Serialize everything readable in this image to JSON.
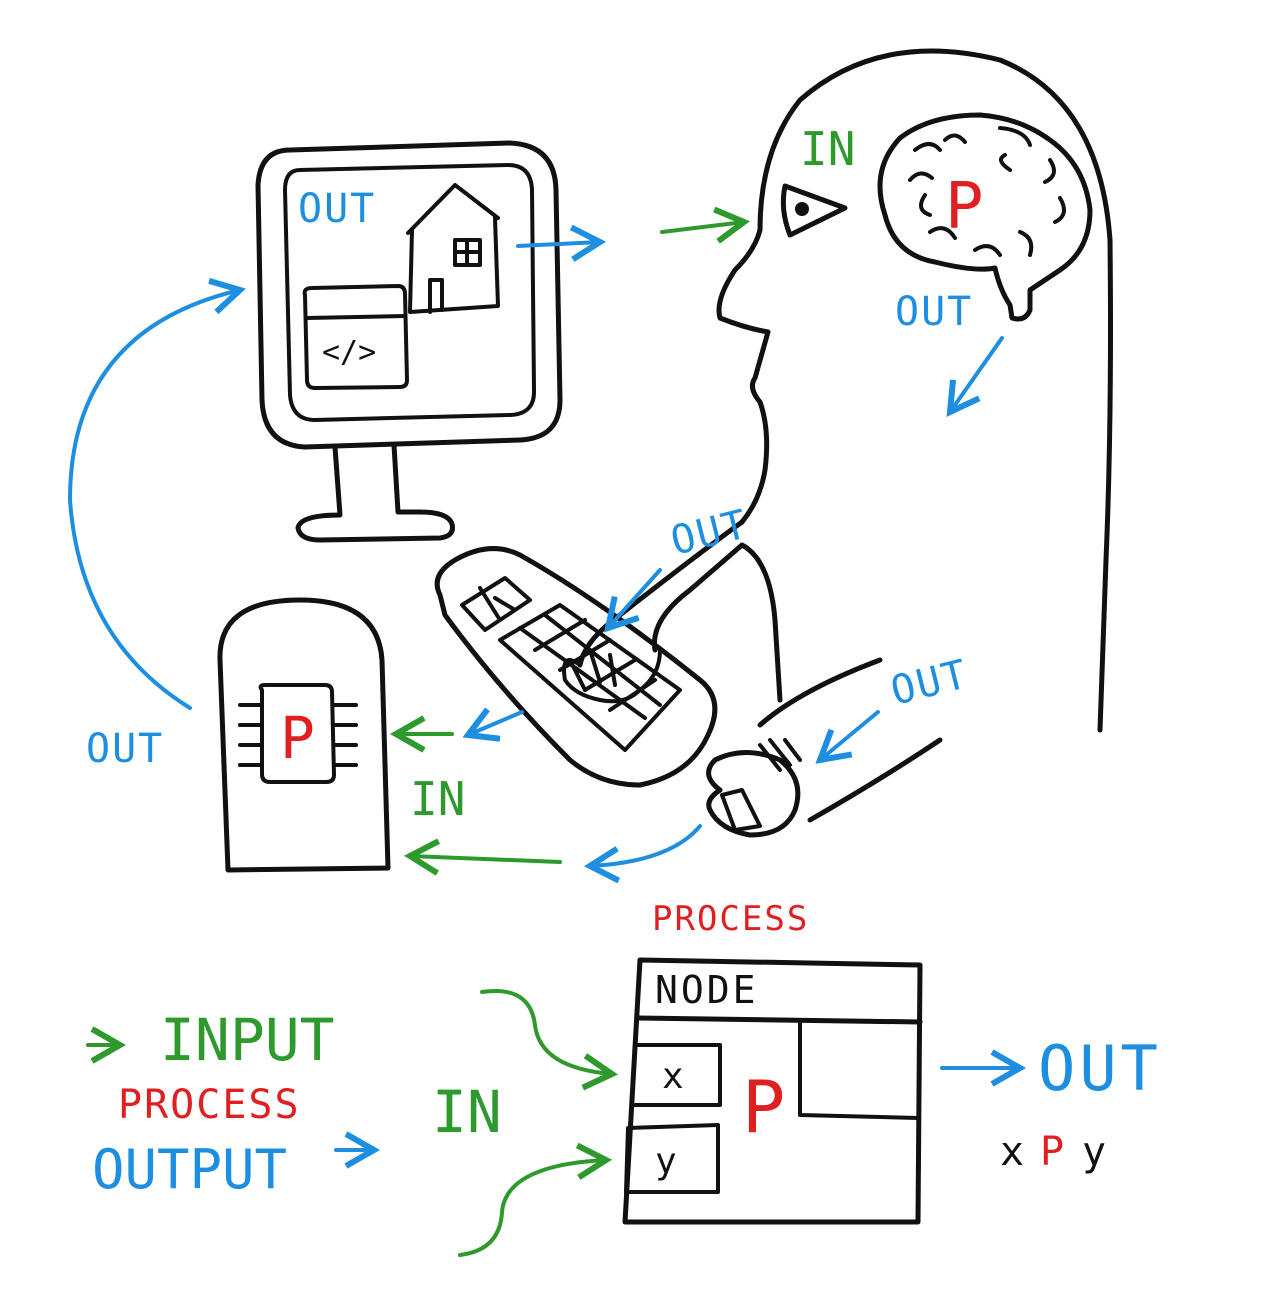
{
  "colors": {
    "in": "#2e9a2e",
    "out": "#1e8fe0",
    "process": "#e02020",
    "ink": "#111111"
  },
  "labels": {
    "in": "IN",
    "out": "OUT",
    "p": "P",
    "code": "</>"
  },
  "legend": {
    "input": "INPUT",
    "process": "PROCESS",
    "output": "OUTPUT"
  },
  "node": {
    "caption": "PROCESS",
    "title": "NODE",
    "input_x": "x",
    "input_y": "y",
    "process_symbol": "P",
    "in_label": "IN",
    "out_label": "OUT"
  },
  "formula": [
    "x",
    "P",
    "y"
  ],
  "icons": [
    "monitor-icon",
    "house-icon",
    "code-window-icon",
    "head-icon",
    "eye-icon",
    "brain-icon",
    "keyboard-icon",
    "hand-icon",
    "mouse-icon",
    "computer-case-icon",
    "chip-icon"
  ]
}
